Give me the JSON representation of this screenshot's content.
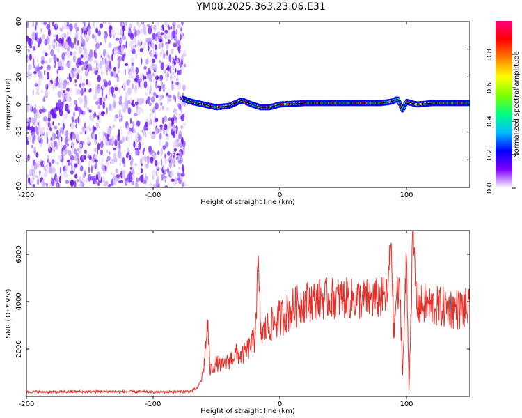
{
  "title": "YM08.2025.363.23.06.E31",
  "chart_data": [
    {
      "type": "heatmap",
      "xlabel": "Height of straight line (km)",
      "ylabel": "Frequency (Hz)",
      "xlim": [
        -200,
        150
      ],
      "ylim": [
        -60,
        60
      ],
      "xticks": [
        "-200",
        "-100",
        "0",
        "100"
      ],
      "yticks": [
        "60",
        "40",
        "20",
        "0",
        "-20",
        "-40",
        "-60"
      ],
      "noise_region_x": [
        -200,
        -75
      ],
      "trace": [
        {
          "x": -76,
          "y": 4
        },
        {
          "x": -70,
          "y": 2
        },
        {
          "x": -60,
          "y": 0
        },
        {
          "x": -50,
          "y": -2
        },
        {
          "x": -40,
          "y": -1
        },
        {
          "x": -30,
          "y": 3
        },
        {
          "x": -22,
          "y": 0
        },
        {
          "x": -15,
          "y": -2
        },
        {
          "x": -8,
          "y": -2
        },
        {
          "x": 0,
          "y": 0
        },
        {
          "x": 20,
          "y": 1
        },
        {
          "x": 40,
          "y": 1
        },
        {
          "x": 60,
          "y": 1
        },
        {
          "x": 80,
          "y": 1
        },
        {
          "x": 88,
          "y": 2
        },
        {
          "x": 93,
          "y": 4
        },
        {
          "x": 97,
          "y": -4
        },
        {
          "x": 100,
          "y": 2
        },
        {
          "x": 108,
          "y": 0
        },
        {
          "x": 120,
          "y": 1
        },
        {
          "x": 150,
          "y": 1
        }
      ],
      "colorbar": {
        "label": "Normalized spectral amplitude",
        "ticks": [
          "0.0",
          "0.2",
          "0.4",
          "0.6",
          "0.8"
        ],
        "range": [
          0,
          1
        ],
        "colors": [
          "#ffffff",
          "#7f00ff",
          "#0000ff",
          "#00bfff",
          "#00ff7f",
          "#7fff00",
          "#ffff00",
          "#ff7f00",
          "#ff0000",
          "#ff0080"
        ]
      }
    },
    {
      "type": "line",
      "xlabel": "Height of straight line (km)",
      "ylabel": "SNR (10 * v/v)",
      "xlim": [
        -200,
        150
      ],
      "ylim": [
        0,
        7000
      ],
      "xticks": [
        "-200",
        "-100",
        "0",
        "100"
      ],
      "yticks": [
        "6000",
        "4000",
        "2000"
      ],
      "color": "#e8302a",
      "series": [
        {
          "x": [
            -200,
            -180,
            -160,
            -140,
            -120,
            -100,
            -80,
            -70,
            -65,
            -62,
            -60,
            -57,
            -55,
            -50,
            -45,
            -40,
            -35,
            -30,
            -25,
            -20,
            -17,
            -15,
            -10,
            -5,
            0,
            5,
            10,
            15,
            20,
            25,
            30,
            40,
            50,
            60,
            70,
            80,
            85,
            88,
            90,
            92,
            95,
            97,
            100,
            102,
            105,
            108,
            110,
            115,
            120,
            130,
            140,
            150
          ],
          "y": [
            200,
            190,
            200,
            210,
            200,
            190,
            200,
            220,
            350,
            700,
            1200,
            3100,
            1100,
            1400,
            1300,
            1500,
            1800,
            1700,
            2000,
            2400,
            5400,
            2600,
            2900,
            3100,
            3300,
            3500,
            3700,
            3850,
            4000,
            4050,
            4100,
            4150,
            4150,
            4100,
            4100,
            4150,
            4200,
            6700,
            2500,
            4300,
            4200,
            1000,
            5900,
            300,
            6900,
            4000,
            3800,
            3900,
            3800,
            3750,
            3700,
            3700
          ]
        }
      ]
    }
  ]
}
